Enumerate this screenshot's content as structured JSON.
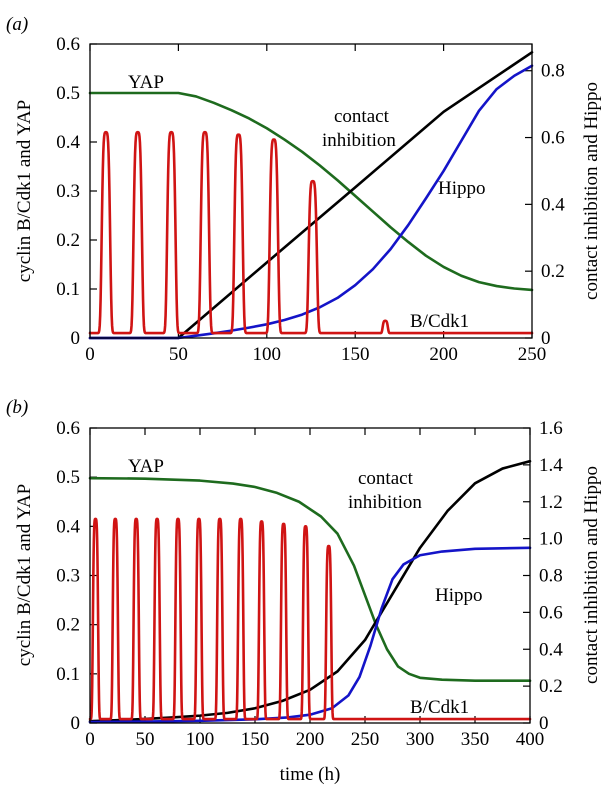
{
  "chart_data": [
    {
      "panel_label": "(a)",
      "type": "line",
      "xlabel": "",
      "ylabel_left": "cyclin B/Cdk1 and YAP",
      "ylabel_right": "contact inhibition and Hippo",
      "xlim": [
        0,
        250
      ],
      "ylim_left": [
        0,
        0.6
      ],
      "ylim_right": [
        0,
        0.88
      ],
      "x_ticks": [
        0,
        50,
        100,
        150,
        200,
        250
      ],
      "y_ticks_left": [
        0,
        0.1,
        0.2,
        0.3,
        0.4,
        0.5,
        0.6
      ],
      "y_ticks_left_labels": [
        "0",
        "0.1",
        "0.2",
        "0.3",
        "0.4",
        "0.5",
        "0.6"
      ],
      "y_ticks_right": [
        0,
        0.2,
        0.4,
        0.6,
        0.8
      ],
      "y_ticks_right_labels": [
        "0",
        "0.2",
        "0.4",
        "0.6",
        "0.8"
      ],
      "grid": false,
      "series": [
        {
          "name": "YAP",
          "axis": "left",
          "color": "#1e6b1e",
          "x": [
            0,
            50,
            60,
            70,
            80,
            90,
            100,
            110,
            120,
            130,
            140,
            150,
            160,
            170,
            180,
            190,
            200,
            210,
            220,
            230,
            240,
            250
          ],
          "y": [
            0.5,
            0.5,
            0.493,
            0.48,
            0.465,
            0.448,
            0.428,
            0.405,
            0.38,
            0.352,
            0.322,
            0.29,
            0.258,
            0.226,
            0.196,
            0.168,
            0.145,
            0.127,
            0.114,
            0.106,
            0.101,
            0.098
          ]
        },
        {
          "name": "contact inhibition",
          "axis": "right",
          "color": "#000000",
          "x": [
            0,
            50,
            100,
            150,
            200,
            250
          ],
          "y": [
            0,
            0,
            0.226,
            0.451,
            0.677,
            0.855
          ]
        },
        {
          "name": "Hippo",
          "axis": "right",
          "color": "#1414c8",
          "x": [
            0,
            50,
            60,
            70,
            80,
            90,
            100,
            110,
            120,
            130,
            140,
            150,
            160,
            170,
            180,
            190,
            200,
            210,
            220,
            230,
            240,
            250
          ],
          "y": [
            0,
            0,
            0.007,
            0.014,
            0.022,
            0.031,
            0.041,
            0.054,
            0.07,
            0.092,
            0.12,
            0.158,
            0.206,
            0.266,
            0.338,
            0.418,
            0.5,
            0.59,
            0.68,
            0.745,
            0.785,
            0.815
          ]
        },
        {
          "name": "B/Cdk1",
          "axis": "left",
          "color": "#d01414",
          "pulses": [
            {
              "center": 9,
              "peak": 0.42
            },
            {
              "center": 27,
              "peak": 0.42
            },
            {
              "center": 46,
              "peak": 0.42
            },
            {
              "center": 65,
              "peak": 0.42
            },
            {
              "center": 84,
              "peak": 0.415
            },
            {
              "center": 104,
              "peak": 0.405
            },
            {
              "center": 126,
              "peak": 0.32
            },
            {
              "center": 167,
              "peak": 0.035
            }
          ],
          "baseline": 0.01
        }
      ],
      "annotations": [
        "YAP",
        "contact",
        "inhibition",
        "Hippo",
        "B/Cdk1"
      ]
    },
    {
      "panel_label": "(b)",
      "type": "line",
      "xlabel": "time (h)",
      "ylabel_left": "cyclin B/Cdk1 and YAP",
      "ylabel_right": "contact inhibition and Hippo",
      "xlim": [
        0,
        400
      ],
      "ylim_left": [
        0,
        0.6
      ],
      "ylim_right": [
        0,
        1.6
      ],
      "x_ticks": [
        0,
        50,
        100,
        150,
        200,
        250,
        300,
        350,
        400
      ],
      "y_ticks_left": [
        0,
        0.1,
        0.2,
        0.3,
        0.4,
        0.5,
        0.6
      ],
      "y_ticks_left_labels": [
        "0",
        "0.1",
        "0.2",
        "0.3",
        "0.4",
        "0.5",
        "0.6"
      ],
      "y_ticks_right": [
        0,
        0.2,
        0.4,
        0.6,
        0.8,
        1.0,
        1.2,
        1.4,
        1.6
      ],
      "y_ticks_right_labels": [
        "0",
        "0.2",
        "0.4",
        "0.6",
        "0.8",
        "1.0",
        "1.2",
        "1.4",
        "1.6"
      ],
      "grid": false,
      "series": [
        {
          "name": "YAP",
          "axis": "left",
          "color": "#1e6b1e",
          "x": [
            0,
            50,
            100,
            130,
            150,
            170,
            190,
            210,
            225,
            240,
            250,
            260,
            270,
            280,
            290,
            300,
            320,
            350,
            400
          ],
          "y": [
            0.498,
            0.497,
            0.493,
            0.487,
            0.48,
            0.468,
            0.45,
            0.42,
            0.385,
            0.32,
            0.26,
            0.2,
            0.15,
            0.115,
            0.1,
            0.092,
            0.088,
            0.086,
            0.086
          ]
        },
        {
          "name": "contact inhibition",
          "axis": "right",
          "color": "#000000",
          "x": [
            0,
            25,
            50,
            75,
            100,
            125,
            150,
            175,
            200,
            225,
            250,
            275,
            300,
            325,
            350,
            375,
            400
          ],
          "y": [
            0.01,
            0.015,
            0.022,
            0.03,
            0.04,
            0.055,
            0.08,
            0.12,
            0.18,
            0.28,
            0.45,
            0.7,
            0.95,
            1.15,
            1.3,
            1.38,
            1.42
          ]
        },
        {
          "name": "Hippo",
          "axis": "right",
          "color": "#1414c8",
          "x": [
            0,
            50,
            100,
            150,
            180,
            200,
            220,
            235,
            245,
            255,
            265,
            275,
            285,
            300,
            320,
            350,
            400
          ],
          "y": [
            0.005,
            0.008,
            0.012,
            0.02,
            0.03,
            0.045,
            0.08,
            0.15,
            0.25,
            0.42,
            0.62,
            0.78,
            0.86,
            0.91,
            0.93,
            0.945,
            0.95
          ]
        },
        {
          "name": "B/Cdk1",
          "axis": "left",
          "color": "#d01414",
          "pulses": [
            {
              "center": 5,
              "peak": 0.415
            },
            {
              "center": 23,
              "peak": 0.415
            },
            {
              "center": 42,
              "peak": 0.415
            },
            {
              "center": 61,
              "peak": 0.415
            },
            {
              "center": 80,
              "peak": 0.415
            },
            {
              "center": 99,
              "peak": 0.415
            },
            {
              "center": 118,
              "peak": 0.415
            },
            {
              "center": 137,
              "peak": 0.415
            },
            {
              "center": 156,
              "peak": 0.41
            },
            {
              "center": 176,
              "peak": 0.405
            },
            {
              "center": 196,
              "peak": 0.4
            },
            {
              "center": 217,
              "peak": 0.36
            }
          ],
          "baseline": 0.008
        }
      ],
      "annotations": [
        "YAP",
        "contact",
        "inhibition",
        "Hippo",
        "B/Cdk1"
      ]
    }
  ]
}
